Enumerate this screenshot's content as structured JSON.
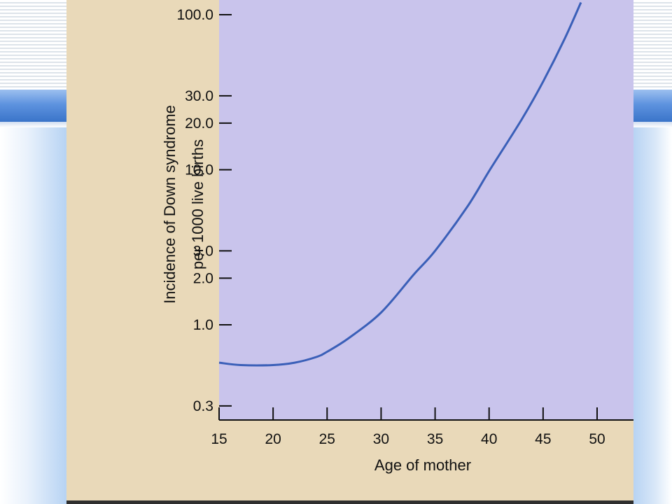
{
  "chart_data": {
    "type": "line",
    "title": "",
    "xlabel": "Age of mother",
    "ylabel_line1": "Incidence of Down syndrome",
    "ylabel_line2": "per 1000 live births",
    "x_ticks": [
      "15",
      "20",
      "25",
      "30",
      "35",
      "40",
      "45",
      "50"
    ],
    "y_ticks": [
      "0.3",
      "1.0",
      "2.0",
      "3.0",
      "10.0",
      "20.0",
      "30.0",
      "100.0"
    ],
    "y_scale": "log",
    "xlim": [
      15,
      52
    ],
    "ylim": [
      0.25,
      160
    ],
    "grid": false,
    "series": [
      {
        "x": [
          15,
          17,
          20,
          22,
          24,
          25,
          27,
          30,
          33,
          35,
          38,
          40,
          43,
          45,
          47,
          48.5
        ],
        "y": [
          0.57,
          0.55,
          0.55,
          0.57,
          0.62,
          0.67,
          0.82,
          1.2,
          2.1,
          3.0,
          5.8,
          9.8,
          21,
          37,
          70,
          120
        ],
        "color": "#3a5fb8"
      }
    ],
    "plot_background": "#c9c4ec",
    "figure_background": "#e9d9b9"
  }
}
